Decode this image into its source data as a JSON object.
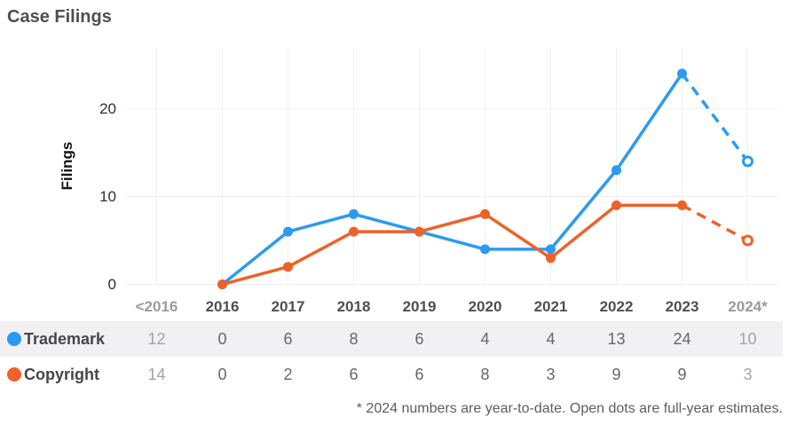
{
  "title": "Case Filings",
  "footnote": "* 2024 numbers are year-to-date. Open dots are full-year estimates.",
  "colors": {
    "trademark": "#2B9AF3",
    "copyright": "#EE6227",
    "grid": "#f0f0f1",
    "row_band_bg": "#f1f1f3",
    "muted_text": "#9b9b9b",
    "dark_text": "#4f4f4f"
  },
  "chart_data": {
    "type": "line",
    "title": "Case Filings",
    "ylabel": "Filings",
    "xlabel": "",
    "categories": [
      "<2016",
      "2016",
      "2017",
      "2018",
      "2019",
      "2020",
      "2021",
      "2022",
      "2023",
      "2024*"
    ],
    "muted_category_indices": [
      0,
      9
    ],
    "yticks": [
      0,
      10,
      20
    ],
    "ylim": [
      0,
      27
    ],
    "grid": true,
    "series": [
      {
        "name": "Trademark",
        "color": "#2B9AF3",
        "values_by_category": [
          12,
          0,
          6,
          8,
          6,
          4,
          4,
          13,
          24,
          10
        ],
        "plotted_solid": {
          "first_category_index": 1,
          "values": [
            0,
            6,
            8,
            6,
            4,
            4,
            13,
            24
          ]
        },
        "estimate_open_dot": {
          "category_index": 9,
          "value": 14,
          "style": "dashed"
        }
      },
      {
        "name": "Copyright",
        "color": "#EE6227",
        "values_by_category": [
          14,
          0,
          2,
          6,
          6,
          8,
          3,
          9,
          9,
          3
        ],
        "plotted_solid": {
          "first_category_index": 1,
          "values": [
            0,
            2,
            6,
            6,
            8,
            3,
            9,
            9
          ]
        },
        "estimate_open_dot": {
          "category_index": 9,
          "value": 5,
          "style": "dashed"
        }
      }
    ]
  },
  "table": {
    "rows": [
      {
        "label": "Trademark",
        "dot_color": "#2B9AF3",
        "values": [
          "12",
          "0",
          "6",
          "8",
          "6",
          "4",
          "4",
          "13",
          "24",
          "10"
        ]
      },
      {
        "label": "Copyright",
        "dot_color": "#EE6227",
        "values": [
          "14",
          "0",
          "2",
          "6",
          "6",
          "8",
          "3",
          "9",
          "9",
          "3"
        ]
      }
    ],
    "muted_value_indices": [
      0,
      9
    ]
  }
}
